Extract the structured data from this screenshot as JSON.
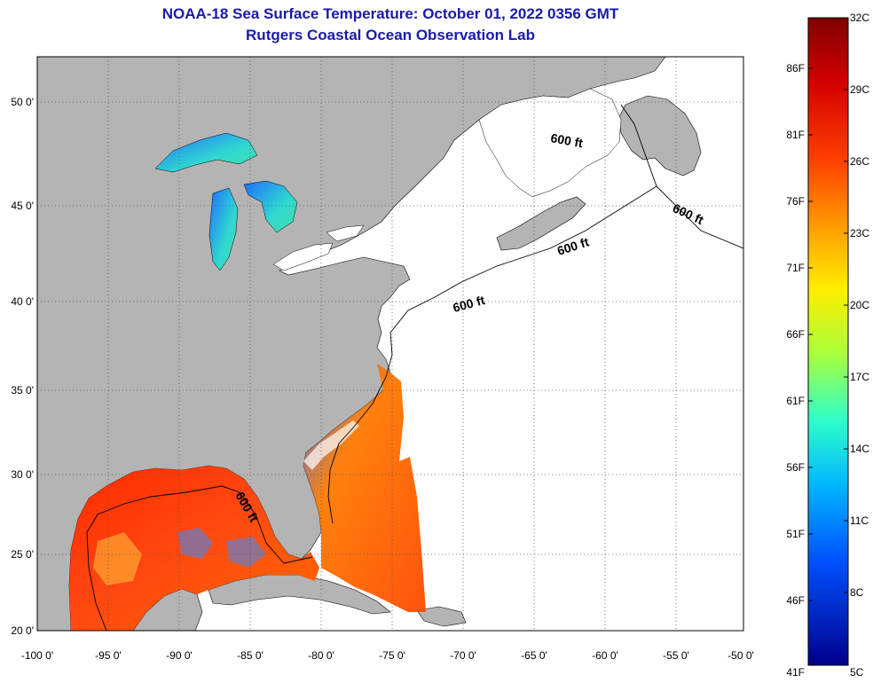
{
  "title": {
    "line1": "NOAA-18 Sea Surface Temperature:  October 01, 2022 0356 GMT",
    "line2": "Rutgers Coastal Ocean Observation Lab"
  },
  "map": {
    "lon_range": [
      -100,
      -50
    ],
    "lat_range": [
      20,
      52
    ],
    "lon_ticks": [
      "-100 0'",
      "-95 0'",
      "-90 0'",
      "-85 0'",
      "-80 0'",
      "-75 0'",
      "-70 0'",
      "-65 0'",
      "-60 0'",
      "-55 0'",
      "-50 0'"
    ],
    "lat_ticks": [
      "50 0'",
      "45 0'",
      "40 0'",
      "35 0'",
      "30 0'",
      "25 0'",
      "20 0'"
    ],
    "land_color": "#b4b4b4",
    "contour_label": "600 ft"
  },
  "colorbar": {
    "celsius": [
      "32C",
      "29C",
      "26C",
      "23C",
      "20C",
      "17C",
      "14C",
      "11C",
      "8C",
      "5C"
    ],
    "fahrenheit": [
      "86F",
      "81F",
      "76F",
      "71F",
      "66F",
      "61F",
      "56F",
      "51F",
      "46F",
      "41F"
    ]
  }
}
